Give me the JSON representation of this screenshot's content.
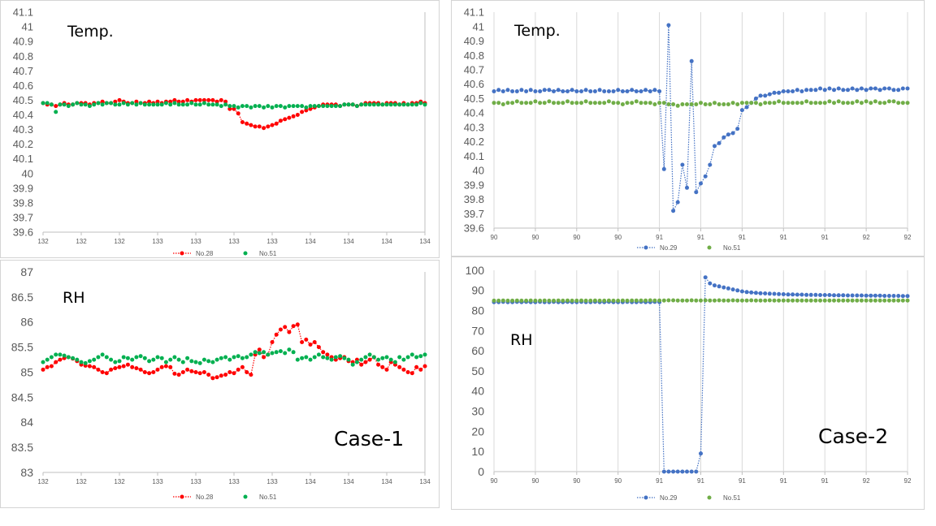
{
  "chart_data": [
    {
      "type": "line",
      "annotation": "Temp.",
      "case_label": "",
      "grid": "horizontal-off",
      "legend_position": "bottom",
      "ylim": [
        39.6,
        41.1
      ],
      "yticks": [
        "41.1",
        "41",
        "40.9",
        "40.8",
        "40.7",
        "40.6",
        "40.5",
        "40.4",
        "40.3",
        "40.2",
        "40.1",
        "40",
        "39.9",
        "39.8",
        "39.7",
        "39.6"
      ],
      "xticks": [
        "132",
        "132",
        "132",
        "133",
        "133",
        "133",
        "133",
        "134",
        "134",
        "134",
        "134"
      ],
      "series": [
        {
          "name": "No.28",
          "color": "#ff0000",
          "style": "dotted-marker",
          "values": [
            40.48,
            40.47,
            40.47,
            40.46,
            40.47,
            40.48,
            40.47,
            40.47,
            40.48,
            40.48,
            40.48,
            40.47,
            40.48,
            40.48,
            40.49,
            40.48,
            40.48,
            40.49,
            40.5,
            40.49,
            40.48,
            40.48,
            40.49,
            40.48,
            40.48,
            40.49,
            40.48,
            40.49,
            40.48,
            40.49,
            40.49,
            40.5,
            40.49,
            40.49,
            40.5,
            40.49,
            40.5,
            40.5,
            40.5,
            40.5,
            40.5,
            40.49,
            40.5,
            40.49,
            40.44,
            40.44,
            40.41,
            40.35,
            40.34,
            40.33,
            40.32,
            40.32,
            40.31,
            40.32,
            40.33,
            40.34,
            40.36,
            40.37,
            40.38,
            40.39,
            40.4,
            40.42,
            40.43,
            40.44,
            40.45,
            40.46,
            40.47,
            40.47,
            40.47,
            40.47,
            40.46,
            40.47,
            40.47,
            40.47,
            40.46,
            40.47,
            40.48,
            40.48,
            40.48,
            40.48,
            40.47,
            40.48,
            40.48,
            40.48,
            40.47,
            40.48,
            40.47,
            40.48,
            40.48,
            40.49,
            40.48
          ]
        },
        {
          "name": "No.51",
          "color": "#00b050",
          "style": "marker",
          "values": [
            40.48,
            40.48,
            40.47,
            40.42,
            40.47,
            40.47,
            40.46,
            40.47,
            40.48,
            40.47,
            40.47,
            40.46,
            40.47,
            40.48,
            40.47,
            40.48,
            40.48,
            40.47,
            40.47,
            40.48,
            40.47,
            40.48,
            40.47,
            40.48,
            40.47,
            40.47,
            40.47,
            40.47,
            40.47,
            40.48,
            40.47,
            40.48,
            40.47,
            40.47,
            40.47,
            40.48,
            40.47,
            40.47,
            40.48,
            40.47,
            40.47,
            40.47,
            40.46,
            40.47,
            40.46,
            40.46,
            40.45,
            40.46,
            40.46,
            40.45,
            40.46,
            40.46,
            40.45,
            40.46,
            40.45,
            40.46,
            40.46,
            40.45,
            40.46,
            40.46,
            40.46,
            40.46,
            40.45,
            40.46,
            40.46,
            40.46,
            40.46,
            40.46,
            40.46,
            40.46,
            40.46,
            40.47,
            40.47,
            40.47,
            40.46,
            40.47,
            40.47,
            40.47,
            40.47,
            40.47,
            40.47,
            40.47,
            40.47,
            40.47,
            40.47,
            40.47,
            40.47,
            40.47,
            40.47,
            40.48,
            40.47
          ]
        }
      ]
    },
    {
      "type": "line",
      "annotation": "RH",
      "case_label": "Case-1",
      "grid": "horizontal-off",
      "legend_position": "bottom",
      "ylim": [
        83,
        87
      ],
      "yticks": [
        "87",
        "86.5",
        "86",
        "85.5",
        "85",
        "84.5",
        "84",
        "83.5",
        "83"
      ],
      "xticks": [
        "132",
        "132",
        "132",
        "133",
        "133",
        "133",
        "133",
        "134",
        "134",
        "134",
        "134"
      ],
      "series": [
        {
          "name": "No.28",
          "color": "#ff0000",
          "style": "dotted-marker",
          "values": [
            85.05,
            85.1,
            85.12,
            85.2,
            85.25,
            85.28,
            85.3,
            85.27,
            85.22,
            85.15,
            85.13,
            85.12,
            85.1,
            85.05,
            85.0,
            84.98,
            85.05,
            85.08,
            85.1,
            85.12,
            85.15,
            85.1,
            85.08,
            85.05,
            85.0,
            84.98,
            85.0,
            85.05,
            85.1,
            85.12,
            85.1,
            84.97,
            84.95,
            85.0,
            85.05,
            85.02,
            85.0,
            84.98,
            85.0,
            84.95,
            84.88,
            84.9,
            84.93,
            84.95,
            85.0,
            84.98,
            85.05,
            85.1,
            85.0,
            84.95,
            85.35,
            85.45,
            85.3,
            85.35,
            85.6,
            85.75,
            85.85,
            85.9,
            85.8,
            85.92,
            85.95,
            85.6,
            85.65,
            85.55,
            85.6,
            85.5,
            85.4,
            85.35,
            85.3,
            85.25,
            85.28,
            85.3,
            85.22,
            85.2,
            85.25,
            85.15,
            85.2,
            85.25,
            85.3,
            85.15,
            85.1,
            85.05,
            85.2,
            85.15,
            85.1,
            85.05,
            85.0,
            84.98,
            85.1,
            85.05,
            85.12
          ]
        },
        {
          "name": "No.51",
          "color": "#00b050",
          "style": "marker",
          "values": [
            85.2,
            85.25,
            85.3,
            85.35,
            85.35,
            85.33,
            85.3,
            85.28,
            85.25,
            85.2,
            85.18,
            85.22,
            85.25,
            85.3,
            85.35,
            85.3,
            85.25,
            85.2,
            85.22,
            85.3,
            85.28,
            85.25,
            85.3,
            85.32,
            85.28,
            85.22,
            85.25,
            85.3,
            85.28,
            85.2,
            85.25,
            85.3,
            85.25,
            85.2,
            85.28,
            85.22,
            85.2,
            85.18,
            85.25,
            85.22,
            85.2,
            85.25,
            85.28,
            85.3,
            85.25,
            85.3,
            85.32,
            85.28,
            85.3,
            85.35,
            85.4,
            85.38,
            85.4,
            85.35,
            85.38,
            85.4,
            85.42,
            85.38,
            85.45,
            85.4,
            85.25,
            85.28,
            85.3,
            85.25,
            85.3,
            85.35,
            85.3,
            85.28,
            85.25,
            85.3,
            85.32,
            85.28,
            85.25,
            85.15,
            85.2,
            85.25,
            85.3,
            85.35,
            85.3,
            85.25,
            85.28,
            85.3,
            85.25,
            85.2,
            85.3,
            85.25,
            85.3,
            85.35,
            85.3,
            85.32,
            85.35
          ]
        }
      ]
    },
    {
      "type": "line",
      "annotation": "Temp.",
      "case_label": "",
      "grid": "vertical-on",
      "legend_position": "bottom",
      "ylim": [
        39.6,
        41.1
      ],
      "yticks": [
        "41.1",
        "41",
        "40.9",
        "40.8",
        "40.7",
        "40.6",
        "40.5",
        "40.4",
        "40.3",
        "40.2",
        "40.1",
        "40",
        "39.9",
        "39.8",
        "39.7",
        "39.6"
      ],
      "xticks": [
        "90",
        "90",
        "90",
        "90",
        "91",
        "91",
        "91",
        "91",
        "91",
        "92",
        "92"
      ],
      "series": [
        {
          "name": "No.29",
          "color": "#4472c4",
          "style": "dotted-marker",
          "values": [
            40.55,
            40.56,
            40.55,
            40.56,
            40.55,
            40.55,
            40.56,
            40.55,
            40.56,
            40.55,
            40.55,
            40.56,
            40.56,
            40.55,
            40.56,
            40.55,
            40.55,
            40.56,
            40.55,
            40.55,
            40.56,
            40.55,
            40.55,
            40.56,
            40.55,
            40.55,
            40.55,
            40.56,
            40.55,
            40.55,
            40.56,
            40.55,
            40.55,
            40.56,
            40.55,
            40.56,
            40.55,
            40.01,
            41.01,
            39.72,
            39.78,
            40.04,
            39.88,
            40.76,
            39.85,
            39.91,
            39.96,
            40.04,
            40.17,
            40.19,
            40.23,
            40.25,
            40.26,
            40.29,
            40.42,
            40.44,
            40.47,
            40.5,
            40.52,
            40.52,
            40.53,
            40.54,
            40.54,
            40.55,
            40.55,
            40.55,
            40.56,
            40.55,
            40.56,
            40.56,
            40.56,
            40.57,
            40.56,
            40.57,
            40.56,
            40.57,
            40.56,
            40.56,
            40.57,
            40.56,
            40.57,
            40.56,
            40.57,
            40.57,
            40.56,
            40.57,
            40.57,
            40.56,
            40.56,
            40.57,
            40.57
          ]
        },
        {
          "name": "No.51",
          "color": "#70ad47",
          "style": "marker",
          "values": [
            40.47,
            40.47,
            40.46,
            40.47,
            40.47,
            40.48,
            40.47,
            40.47,
            40.47,
            40.48,
            40.47,
            40.47,
            40.48,
            40.47,
            40.47,
            40.47,
            40.48,
            40.47,
            40.47,
            40.47,
            40.48,
            40.47,
            40.47,
            40.47,
            40.47,
            40.48,
            40.47,
            40.47,
            40.46,
            40.47,
            40.47,
            40.48,
            40.47,
            40.47,
            40.47,
            40.46,
            40.47,
            40.47,
            40.46,
            40.46,
            40.45,
            40.46,
            40.46,
            40.46,
            40.46,
            40.47,
            40.46,
            40.46,
            40.47,
            40.46,
            40.46,
            40.46,
            40.47,
            40.46,
            40.47,
            40.47,
            40.47,
            40.47,
            40.46,
            40.47,
            40.47,
            40.47,
            40.48,
            40.47,
            40.47,
            40.47,
            40.47,
            40.47,
            40.48,
            40.47,
            40.47,
            40.47,
            40.47,
            40.48,
            40.47,
            40.48,
            40.47,
            40.47,
            40.47,
            40.48,
            40.47,
            40.48,
            40.47,
            40.48,
            40.47,
            40.47,
            40.48,
            40.48,
            40.47,
            40.47,
            40.47
          ]
        }
      ]
    },
    {
      "type": "line",
      "annotation": "RH",
      "case_label": "Case-2",
      "grid": "vertical-on",
      "legend_position": "bottom",
      "ylim": [
        0,
        100
      ],
      "yticks": [
        "100",
        "90",
        "80",
        "70",
        "60",
        "50",
        "40",
        "30",
        "20",
        "10",
        "0"
      ],
      "xticks": [
        "90",
        "90",
        "90",
        "90",
        "91",
        "91",
        "91",
        "91",
        "91",
        "92",
        "92"
      ],
      "series": [
        {
          "name": "No.29",
          "color": "#4472c4",
          "style": "dotted-marker",
          "values": [
            84.2,
            84.2,
            84.3,
            84.2,
            84.2,
            84.3,
            84.2,
            84.3,
            84.2,
            84.2,
            84.3,
            84.2,
            84.2,
            84.3,
            84.2,
            84.2,
            84.3,
            84.2,
            84.2,
            84.3,
            84.2,
            84.2,
            84.3,
            84.2,
            84.2,
            84.3,
            84.2,
            84.2,
            84.2,
            84.3,
            84.2,
            84.2,
            84.3,
            84.2,
            84.2,
            84.3,
            84.2,
            0,
            0,
            0,
            0,
            0,
            0,
            0,
            0,
            9,
            96.5,
            93.5,
            92.5,
            92,
            91.5,
            91,
            90.5,
            90,
            89.5,
            89.2,
            89,
            88.8,
            88.6,
            88.5,
            88.4,
            88.3,
            88.2,
            88.1,
            88,
            88,
            87.9,
            87.9,
            87.8,
            87.8,
            87.8,
            87.7,
            87.7,
            87.7,
            87.6,
            87.6,
            87.6,
            87.5,
            87.5,
            87.5,
            87.5,
            87.4,
            87.4,
            87.4,
            87.4,
            87.3,
            87.3,
            87.3,
            87.3,
            87.2,
            87.2
          ]
        },
        {
          "name": "No.51",
          "color": "#70ad47",
          "style": "marker",
          "values": [
            84.9,
            84.9,
            85,
            84.9,
            84.9,
            85,
            84.9,
            84.9,
            85,
            84.9,
            84.9,
            85,
            84.9,
            84.9,
            85,
            84.9,
            85,
            84.9,
            84.9,
            85,
            84.9,
            84.9,
            85,
            84.9,
            84.9,
            85,
            84.9,
            84.9,
            85,
            84.9,
            85,
            85,
            85,
            85,
            85.1,
            85,
            85,
            85,
            85.1,
            85.1,
            85,
            85,
            85,
            85.1,
            85,
            85,
            85.1,
            85,
            85,
            85.1,
            85,
            85,
            85.1,
            85,
            85,
            85,
            85.1,
            85,
            85,
            85,
            85.1,
            85,
            85,
            85,
            85,
            85,
            85,
            85,
            85,
            85,
            85,
            85,
            85,
            85,
            85,
            85,
            85,
            85,
            85,
            85,
            85,
            85,
            85,
            85,
            85,
            85,
            85,
            85,
            85,
            85,
            85
          ]
        }
      ]
    }
  ]
}
